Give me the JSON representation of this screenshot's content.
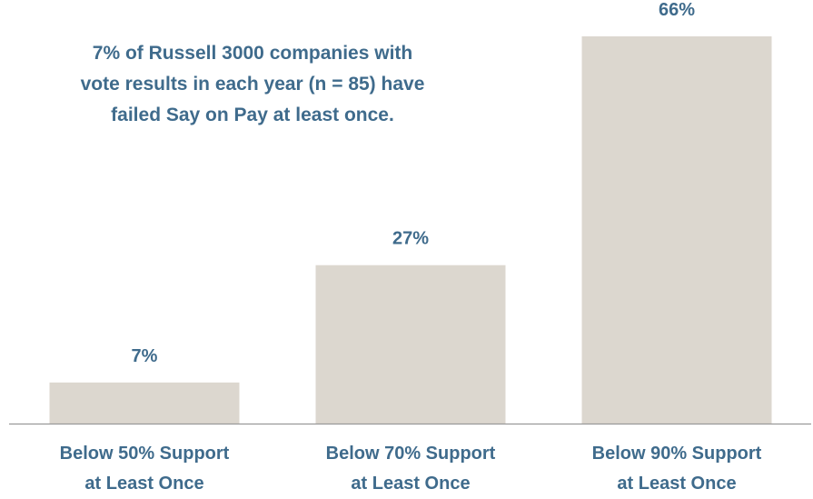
{
  "chart_data": {
    "type": "bar",
    "title": "",
    "annotation": "7% of Russell 3000 companies with\nvote results in each year (n = 85) have\nfailed Say on Pay at least once.",
    "categories": [
      [
        "Below 50% Support",
        "at Least Once"
      ],
      [
        "Below 70% Support",
        "at Least Once"
      ],
      [
        "Below 90% Support",
        "at Least Once"
      ]
    ],
    "values": [
      7,
      27,
      66
    ],
    "data_labels": [
      "7%",
      "27%",
      "66%"
    ],
    "xlabel": "",
    "ylabel": "",
    "ylim": [
      0,
      66
    ],
    "grid": false,
    "legend": "none",
    "colors": {
      "bar": "#dcd7cf",
      "axis": "#999999",
      "text": "#3f6b8c"
    }
  }
}
